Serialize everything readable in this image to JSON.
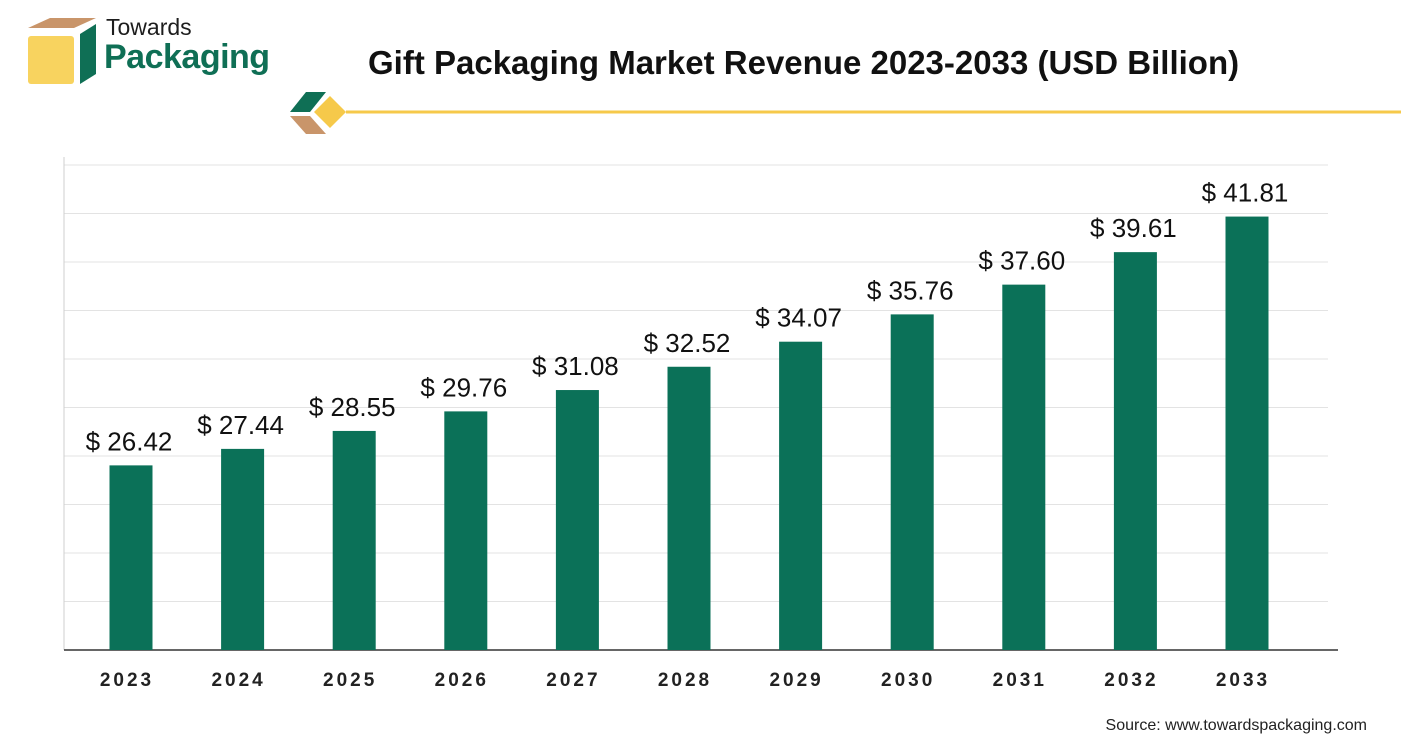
{
  "brand": {
    "line1": "Towards",
    "line2": "Packaging"
  },
  "title": "Gift Packaging Market Revenue 2023-2033 (USD Billion)",
  "source": "Source: www.towardspackaging.com",
  "colors": {
    "bar": "#0b7158",
    "accent": "#f6c94a",
    "brand_green": "#0f6f55",
    "box_tan": "#c9956a"
  },
  "chart_data": {
    "type": "bar",
    "title": "Gift Packaging Market Revenue 2023-2033 (USD Billion)",
    "categories": [
      "2023",
      "2024",
      "2025",
      "2026",
      "2027",
      "2028",
      "2029",
      "2030",
      "2031",
      "2032",
      "2033"
    ],
    "values": [
      26.42,
      27.44,
      28.55,
      29.76,
      31.08,
      32.52,
      34.07,
      35.76,
      37.6,
      39.61,
      41.81
    ],
    "labels": [
      "$ 26.42",
      "$ 27.44",
      "$ 28.55",
      "$ 29.76",
      "$ 31.08",
      "$ 32.52",
      "$ 34.07",
      "$ 35.76",
      "$ 37.60",
      "$ 39.61",
      "$ 41.81"
    ],
    "xlabel": "",
    "ylabel": "",
    "ylim": [
      15,
      45
    ],
    "grid": true,
    "legend": "none"
  }
}
